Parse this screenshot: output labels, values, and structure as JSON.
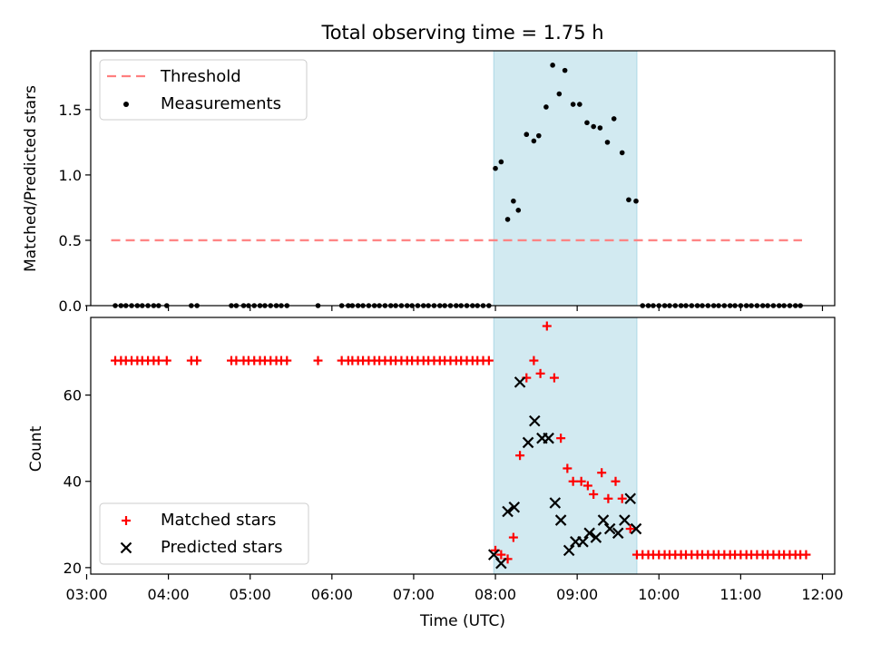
{
  "chart_data": {
    "title": "Total observing time = 1.75 h",
    "xlabel": "Time (UTC)",
    "xlim": [
      3.05,
      12.15
    ],
    "xticks": [
      {
        "label": "03:00",
        "value": 3
      },
      {
        "label": "04:00",
        "value": 4
      },
      {
        "label": "05:00",
        "value": 5
      },
      {
        "label": "06:00",
        "value": 6
      },
      {
        "label": "07:00",
        "value": 7
      },
      {
        "label": "08:00",
        "value": 8
      },
      {
        "label": "09:00",
        "value": 9
      },
      {
        "label": "10:00",
        "value": 10
      },
      {
        "label": "11:00",
        "value": 11
      },
      {
        "label": "12:00",
        "value": 12
      }
    ],
    "observing_window": {
      "start": 7.98,
      "end": 9.73,
      "color": "#add8e6"
    },
    "panels": [
      {
        "type": "scatter",
        "ylabel": "Matched/Predicted stars",
        "ylim": [
          0,
          1.95
        ],
        "yticks": [
          "0.0",
          "0.5",
          "1.0",
          "1.5"
        ],
        "legend_position": "upper left",
        "threshold": {
          "name": "Threshold",
          "value": 0.5,
          "x_range": [
            3.3,
            11.75
          ],
          "color": "#ff7f7f"
        },
        "series": [
          {
            "name": "Measurements",
            "marker": "dot",
            "color": "#000000",
            "points": [
              [
                3.35,
                0
              ],
              [
                3.42,
                0
              ],
              [
                3.48,
                0
              ],
              [
                3.55,
                0
              ],
              [
                3.62,
                0
              ],
              [
                3.68,
                0
              ],
              [
                3.75,
                0
              ],
              [
                3.82,
                0
              ],
              [
                3.88,
                0
              ],
              [
                3.98,
                0
              ],
              [
                4.28,
                0
              ],
              [
                4.35,
                0
              ],
              [
                4.77,
                0
              ],
              [
                4.83,
                0
              ],
              [
                4.92,
                0
              ],
              [
                4.98,
                0
              ],
              [
                5.05,
                0
              ],
              [
                5.12,
                0
              ],
              [
                5.18,
                0
              ],
              [
                5.25,
                0
              ],
              [
                5.32,
                0
              ],
              [
                5.38,
                0
              ],
              [
                5.45,
                0
              ],
              [
                5.83,
                0
              ],
              [
                6.12,
                0
              ],
              [
                6.2,
                0
              ],
              [
                6.25,
                0
              ],
              [
                6.32,
                0
              ],
              [
                6.38,
                0
              ],
              [
                6.45,
                0
              ],
              [
                6.52,
                0
              ],
              [
                6.58,
                0
              ],
              [
                6.65,
                0
              ],
              [
                6.72,
                0
              ],
              [
                6.78,
                0
              ],
              [
                6.85,
                0
              ],
              [
                6.92,
                0
              ],
              [
                6.98,
                0
              ],
              [
                7.05,
                0
              ],
              [
                7.12,
                0
              ],
              [
                7.18,
                0
              ],
              [
                7.25,
                0
              ],
              [
                7.32,
                0
              ],
              [
                7.38,
                0
              ],
              [
                7.45,
                0
              ],
              [
                7.52,
                0
              ],
              [
                7.58,
                0
              ],
              [
                7.65,
                0
              ],
              [
                7.72,
                0
              ],
              [
                7.78,
                0
              ],
              [
                7.85,
                0
              ],
              [
                7.92,
                0
              ],
              [
                8.0,
                1.05
              ],
              [
                8.07,
                1.1
              ],
              [
                8.15,
                0.66
              ],
              [
                8.22,
                0.8
              ],
              [
                8.28,
                0.73
              ],
              [
                8.38,
                1.31
              ],
              [
                8.47,
                1.26
              ],
              [
                8.53,
                1.3
              ],
              [
                8.62,
                1.52
              ],
              [
                8.7,
                1.84
              ],
              [
                8.78,
                1.62
              ],
              [
                8.85,
                1.8
              ],
              [
                8.95,
                1.54
              ],
              [
                9.03,
                1.54
              ],
              [
                9.12,
                1.4
              ],
              [
                9.2,
                1.37
              ],
              [
                9.28,
                1.36
              ],
              [
                9.37,
                1.25
              ],
              [
                9.45,
                1.43
              ],
              [
                9.55,
                1.17
              ],
              [
                9.63,
                0.81
              ],
              [
                9.72,
                0.8
              ],
              [
                9.8,
                0
              ],
              [
                9.87,
                0
              ],
              [
                9.93,
                0
              ],
              [
                10.0,
                0
              ],
              [
                10.07,
                0
              ],
              [
                10.13,
                0
              ],
              [
                10.2,
                0
              ],
              [
                10.27,
                0
              ],
              [
                10.33,
                0
              ],
              [
                10.4,
                0
              ],
              [
                10.47,
                0
              ],
              [
                10.53,
                0
              ],
              [
                10.6,
                0
              ],
              [
                10.67,
                0
              ],
              [
                10.73,
                0
              ],
              [
                10.8,
                0
              ],
              [
                10.87,
                0
              ],
              [
                10.93,
                0
              ],
              [
                11.0,
                0
              ],
              [
                11.07,
                0
              ],
              [
                11.13,
                0
              ],
              [
                11.2,
                0
              ],
              [
                11.27,
                0
              ],
              [
                11.33,
                0
              ],
              [
                11.4,
                0
              ],
              [
                11.47,
                0
              ],
              [
                11.53,
                0
              ],
              [
                11.6,
                0
              ],
              [
                11.67,
                0
              ],
              [
                11.73,
                0
              ]
            ]
          }
        ]
      },
      {
        "type": "scatter",
        "ylabel": "Count",
        "ylim": [
          18.5,
          78
        ],
        "yticks": [
          "20",
          "40",
          "60"
        ],
        "legend_position": "lower left",
        "series": [
          {
            "name": "Matched stars",
            "marker": "plus",
            "color": "#ff0000",
            "points": [
              [
                3.35,
                68
              ],
              [
                3.42,
                68
              ],
              [
                3.48,
                68
              ],
              [
                3.55,
                68
              ],
              [
                3.62,
                68
              ],
              [
                3.68,
                68
              ],
              [
                3.75,
                68
              ],
              [
                3.82,
                68
              ],
              [
                3.88,
                68
              ],
              [
                3.98,
                68
              ],
              [
                4.28,
                68
              ],
              [
                4.35,
                68
              ],
              [
                4.77,
                68
              ],
              [
                4.83,
                68
              ],
              [
                4.92,
                68
              ],
              [
                4.98,
                68
              ],
              [
                5.05,
                68
              ],
              [
                5.12,
                68
              ],
              [
                5.18,
                68
              ],
              [
                5.25,
                68
              ],
              [
                5.32,
                68
              ],
              [
                5.38,
                68
              ],
              [
                5.45,
                68
              ],
              [
                5.83,
                68
              ],
              [
                6.12,
                68
              ],
              [
                6.2,
                68
              ],
              [
                6.25,
                68
              ],
              [
                6.32,
                68
              ],
              [
                6.38,
                68
              ],
              [
                6.45,
                68
              ],
              [
                6.52,
                68
              ],
              [
                6.58,
                68
              ],
              [
                6.65,
                68
              ],
              [
                6.72,
                68
              ],
              [
                6.78,
                68
              ],
              [
                6.85,
                68
              ],
              [
                6.92,
                68
              ],
              [
                6.98,
                68
              ],
              [
                7.05,
                68
              ],
              [
                7.12,
                68
              ],
              [
                7.18,
                68
              ],
              [
                7.25,
                68
              ],
              [
                7.32,
                68
              ],
              [
                7.38,
                68
              ],
              [
                7.45,
                68
              ],
              [
                7.52,
                68
              ],
              [
                7.58,
                68
              ],
              [
                7.65,
                68
              ],
              [
                7.72,
                68
              ],
              [
                7.78,
                68
              ],
              [
                7.85,
                68
              ],
              [
                7.92,
                68
              ],
              [
                8.0,
                24
              ],
              [
                8.07,
                23
              ],
              [
                8.15,
                22
              ],
              [
                8.22,
                27
              ],
              [
                8.3,
                46
              ],
              [
                8.38,
                64
              ],
              [
                8.47,
                68
              ],
              [
                8.55,
                65
              ],
              [
                8.63,
                76
              ],
              [
                8.72,
                64
              ],
              [
                8.8,
                50
              ],
              [
                8.88,
                43
              ],
              [
                8.95,
                40
              ],
              [
                9.05,
                40
              ],
              [
                9.13,
                39
              ],
              [
                9.2,
                37
              ],
              [
                9.3,
                42
              ],
              [
                9.38,
                36
              ],
              [
                9.47,
                40
              ],
              [
                9.55,
                36
              ],
              [
                9.65,
                29
              ],
              [
                9.73,
                23
              ],
              [
                9.8,
                23
              ],
              [
                9.87,
                23
              ],
              [
                9.93,
                23
              ],
              [
                10.0,
                23
              ],
              [
                10.07,
                23
              ],
              [
                10.13,
                23
              ],
              [
                10.2,
                23
              ],
              [
                10.27,
                23
              ],
              [
                10.33,
                23
              ],
              [
                10.4,
                23
              ],
              [
                10.47,
                23
              ],
              [
                10.53,
                23
              ],
              [
                10.6,
                23
              ],
              [
                10.67,
                23
              ],
              [
                10.73,
                23
              ],
              [
                10.8,
                23
              ],
              [
                10.87,
                23
              ],
              [
                10.93,
                23
              ],
              [
                11.0,
                23
              ],
              [
                11.07,
                23
              ],
              [
                11.13,
                23
              ],
              [
                11.2,
                23
              ],
              [
                11.27,
                23
              ],
              [
                11.33,
                23
              ],
              [
                11.4,
                23
              ],
              [
                11.47,
                23
              ],
              [
                11.53,
                23
              ],
              [
                11.6,
                23
              ],
              [
                11.67,
                23
              ],
              [
                11.73,
                23
              ],
              [
                11.8,
                23
              ]
            ]
          },
          {
            "name": "Predicted stars",
            "marker": "x",
            "color": "#000000",
            "points": [
              [
                7.98,
                23
              ],
              [
                8.07,
                21
              ],
              [
                8.15,
                33
              ],
              [
                8.23,
                34
              ],
              [
                8.3,
                63
              ],
              [
                8.4,
                49
              ],
              [
                8.48,
                54
              ],
              [
                8.57,
                50
              ],
              [
                8.65,
                50
              ],
              [
                8.73,
                35
              ],
              [
                8.8,
                31
              ],
              [
                8.9,
                24
              ],
              [
                8.98,
                26
              ],
              [
                9.07,
                26
              ],
              [
                9.15,
                28
              ],
              [
                9.23,
                27
              ],
              [
                9.32,
                31
              ],
              [
                9.4,
                29
              ],
              [
                9.5,
                28
              ],
              [
                9.58,
                31
              ],
              [
                9.65,
                36
              ],
              [
                9.72,
                29
              ]
            ]
          }
        ]
      }
    ]
  }
}
